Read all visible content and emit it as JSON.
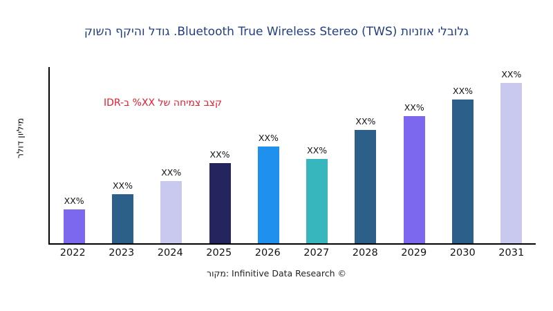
{
  "title": "קושה ףקיהו לדוג .Bluetooth True Wireless Stereo (TWS) תוינזוא ילבולג",
  "title_color": "#203d85",
  "y_axis_label": "רלוד ןוילימ",
  "annotation": {
    "text": "IDR-ב %XX לש החימצ בצק",
    "color": "#e8192c"
  },
  "source": "רוקמ: Infinitive Data Research ©",
  "chart_data": {
    "type": "bar",
    "title": "קושה ףקיהו לדוג .Bluetooth True Wireless Stereo (TWS) תוינזוא ילבולג",
    "xlabel": "",
    "ylabel": "רלוד ןוילימ",
    "categories": [
      "2022",
      "2023",
      "2024",
      "2025",
      "2026",
      "2027",
      "2028",
      "2029",
      "2030",
      "2031"
    ],
    "bar_labels": [
      "XX%",
      "XX%",
      "XX%",
      "XX%",
      "XX%",
      "XX%",
      "XX%",
      "XX%",
      "XX%",
      "XX%"
    ],
    "values": [
      49,
      71,
      90,
      116,
      140,
      122,
      164,
      184,
      208,
      232
    ],
    "values_note": "relative bar heights estimated from pixels; actual figures masked as XX% in the chart",
    "ymax": 255,
    "colors": [
      "#7b68ee",
      "#2d5f8b",
      "#c9c9f0",
      "#24245e",
      "#2090ee",
      "#38b6be",
      "#2d5f8b",
      "#7b68ee",
      "#2d5f8b",
      "#c9c9f0"
    ],
    "grid": false,
    "legend": false,
    "annotation": "IDR-ב %XX לש החימצ בצק"
  }
}
